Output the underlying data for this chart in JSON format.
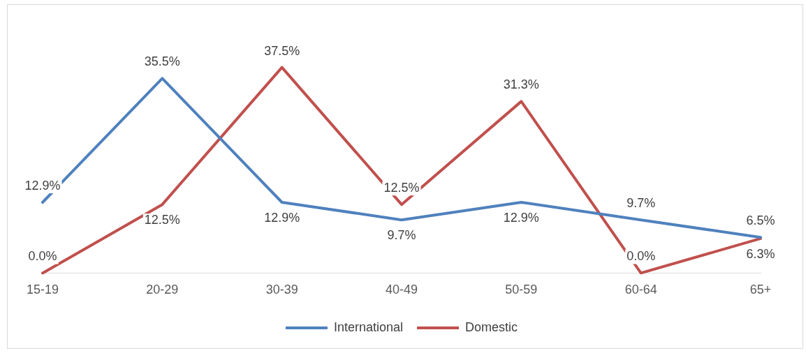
{
  "chart_data": {
    "type": "line",
    "categories": [
      "15-19",
      "20-29",
      "30-39",
      "40-49",
      "50-59",
      "60-64",
      "65+"
    ],
    "series": [
      {
        "name": "International",
        "color": "#4f81bd",
        "values": [
          12.9,
          35.5,
          12.9,
          9.7,
          12.9,
          9.7,
          6.5
        ],
        "value_labels": [
          "12.9%",
          "35.5%",
          "12.9%",
          "9.7%",
          "12.9%",
          "9.7%",
          "6.5%"
        ]
      },
      {
        "name": "Domestic",
        "color": "#c0504d",
        "values": [
          0.0,
          12.5,
          37.5,
          12.5,
          31.3,
          0.0,
          6.3
        ],
        "value_labels": [
          "0.0%",
          "12.5%",
          "37.5%",
          "12.5%",
          "31.3%",
          "0.0%",
          "6.3%"
        ]
      }
    ],
    "legend": "bottom",
    "grid": false,
    "marker": "none",
    "line_style": "solid",
    "tick_labels": "x"
  }
}
